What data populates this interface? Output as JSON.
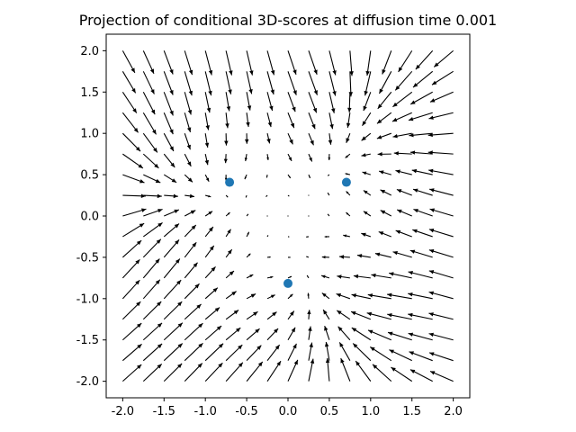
{
  "chart_data": {
    "type": "scatter",
    "title": "Projection of conditional 3D-scores at diffusion time 0.001",
    "xlabel": "",
    "ylabel": "",
    "xlim": [
      -2.2,
      2.2
    ],
    "ylim": [
      -2.2,
      2.2
    ],
    "x_ticks": [
      "-2.0",
      "-1.5",
      "-1.0",
      "-0.5",
      "0.0",
      "0.5",
      "1.0",
      "1.5",
      "2.0"
    ],
    "y_ticks": [
      "2.0",
      "1.5",
      "1.0",
      "0.5",
      "0.0",
      "-0.5",
      "-1.0",
      "-1.5",
      "-2.0"
    ],
    "grid": false,
    "points": [
      {
        "x": -0.707,
        "y": 0.408
      },
      {
        "x": 0.707,
        "y": 0.408
      },
      {
        "x": 0.0,
        "y": -0.816
      }
    ],
    "quiver": {
      "grid_x": [
        -2.0,
        2.0,
        17
      ],
      "grid_y": [
        -2.0,
        2.0,
        17
      ],
      "field": "score vectors of projected 3-point mixture"
    },
    "colors": {
      "points": "#1f77b4",
      "arrows": "#000000",
      "axes": "#000000"
    }
  }
}
